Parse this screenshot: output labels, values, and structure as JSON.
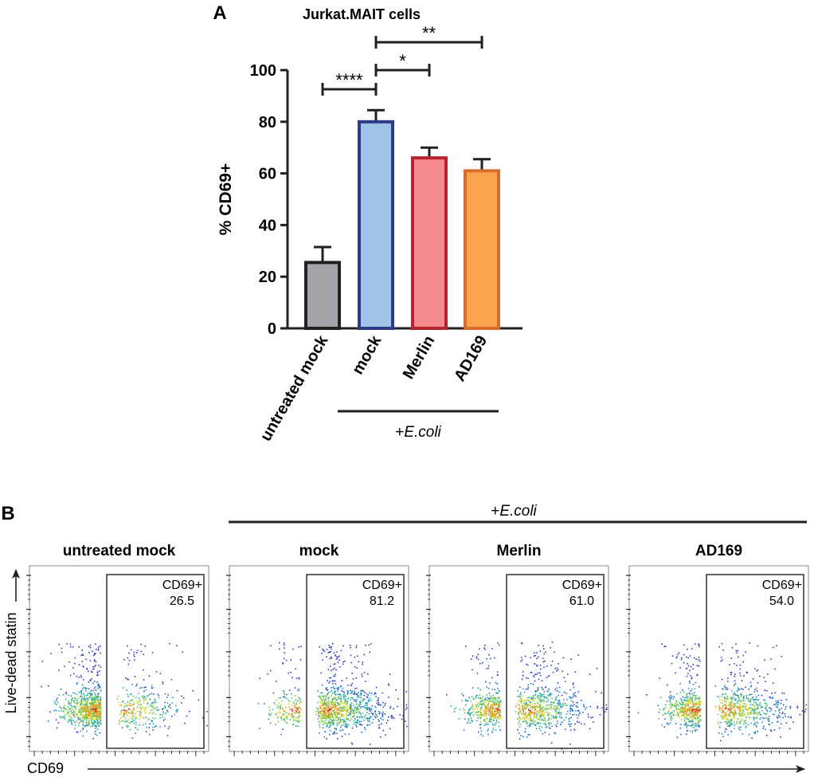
{
  "panel_a": {
    "letter": "A",
    "chart_data": {
      "type": "bar",
      "title": "Jurkat.MAIT cells",
      "ylabel": "% CD69+",
      "xlabel": "",
      "ylim": [
        0,
        100
      ],
      "yticks": [
        0,
        20,
        40,
        60,
        80,
        100
      ],
      "categories": [
        "untreated mock",
        "mock",
        "Merlin",
        "AD169"
      ],
      "values": [
        25.5,
        80,
        66,
        61
      ],
      "errors": [
        6,
        4.5,
        4,
        4.5
      ],
      "bar_fill": [
        "#a4a5aa",
        "#9fc3e7",
        "#f58a8e",
        "#f9a54f"
      ],
      "bar_stroke": [
        "#231f20",
        "#2e3a85",
        "#b5232f",
        "#d86c2a"
      ],
      "group_label": "+E.coli",
      "group_label_prefix": "+",
      "group_label_italic": "E.coli",
      "significance": [
        {
          "from": 0,
          "to": 1,
          "label": "****"
        },
        {
          "from": 1,
          "to": 2,
          "label": "*"
        },
        {
          "from": 1,
          "to": 3,
          "label": "**"
        }
      ]
    }
  },
  "panel_b": {
    "letter": "B",
    "group_label_prefix": "+",
    "group_label_italic": "E.coli",
    "y_axis_label": "Live-dead statin",
    "x_axis_label": "CD69",
    "gate_label": "CD69+",
    "plots": [
      {
        "title": "untreated mock",
        "gate_value": "26.5",
        "pct": 26.5
      },
      {
        "title": "mock",
        "gate_value": "81.2",
        "pct": 81.2
      },
      {
        "title": "Merlin",
        "gate_value": "61.0",
        "pct": 61.0
      },
      {
        "title": "AD169",
        "gate_value": "54.0",
        "pct": 54.0
      }
    ]
  }
}
